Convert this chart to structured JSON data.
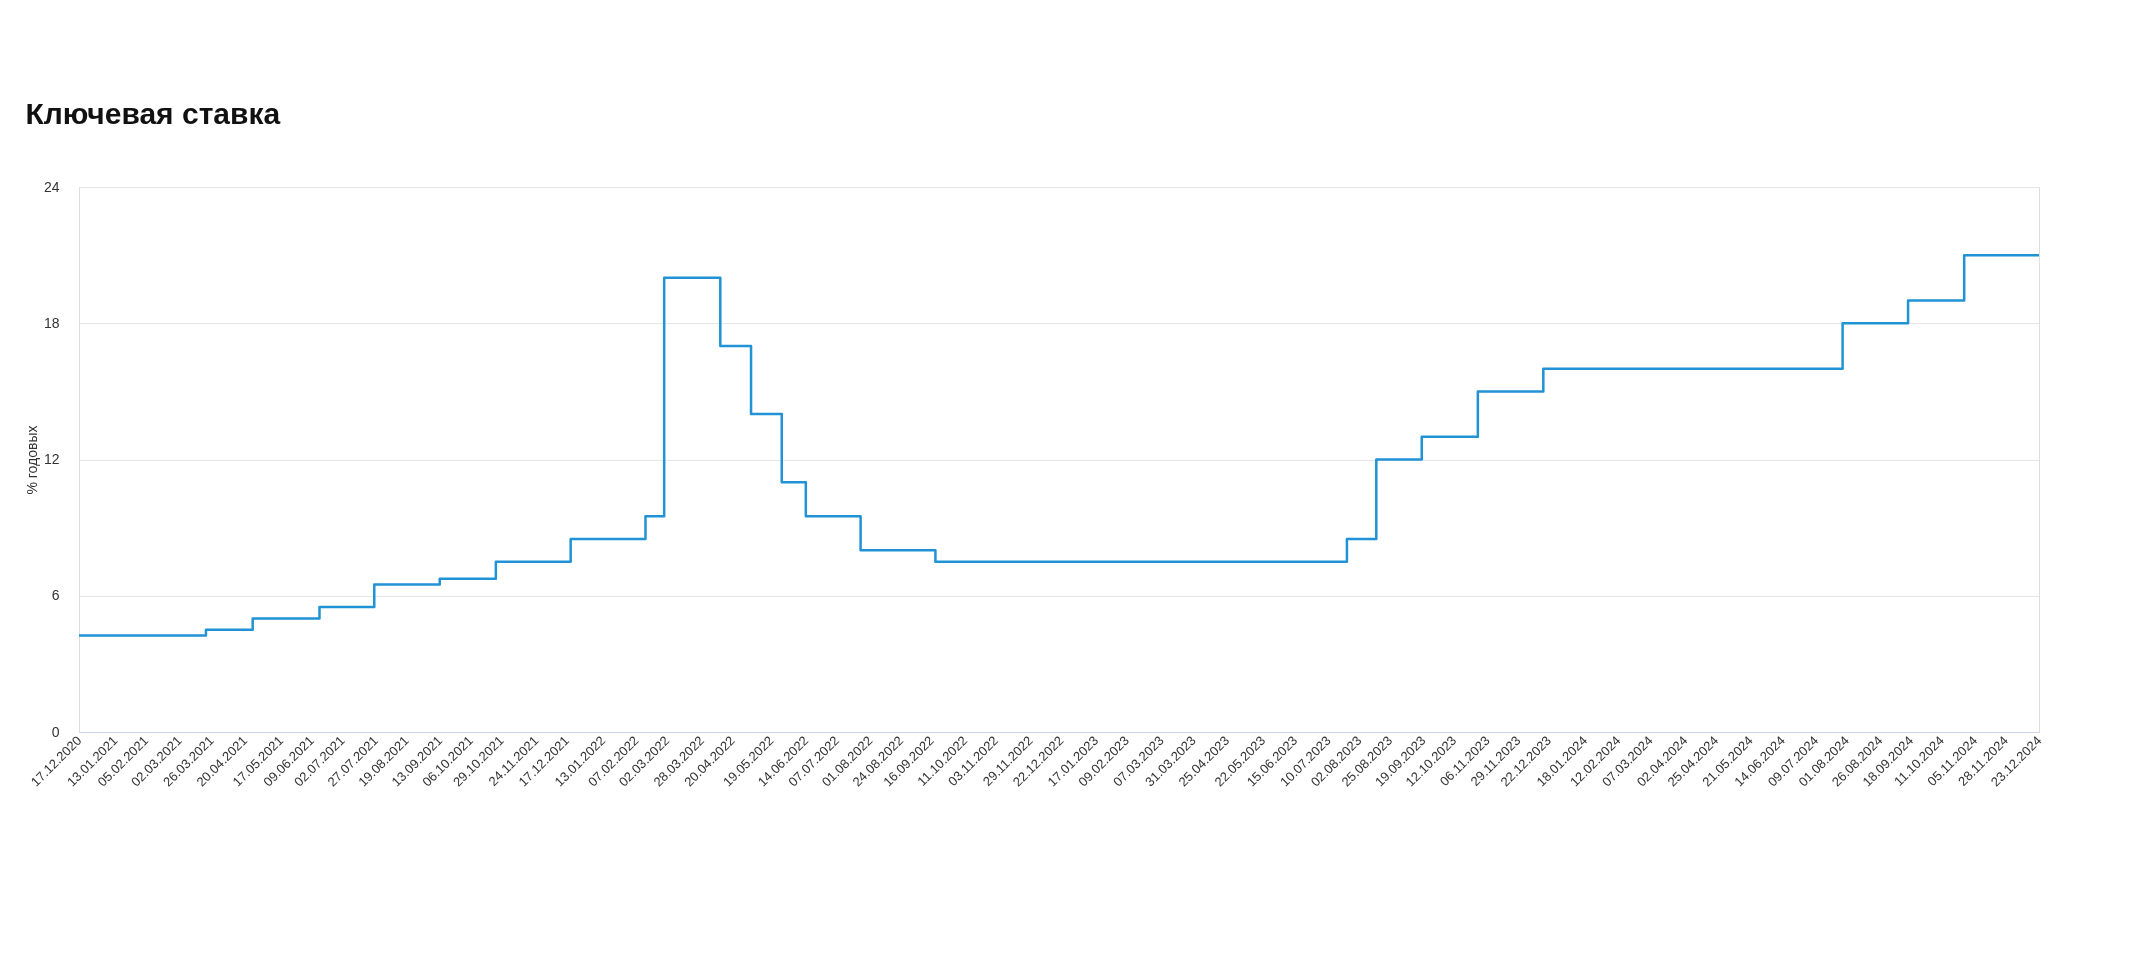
{
  "chart_data": {
    "type": "step",
    "title": "Ключевая ставка",
    "ylabel": "% годовых",
    "x": [
      "2020-12-17",
      "2021-03-22",
      "2021-04-26",
      "2021-06-15",
      "2021-07-26",
      "2021-09-13",
      "2021-10-25",
      "2021-12-20",
      "2022-02-14",
      "2022-02-28",
      "2022-04-11",
      "2022-05-04",
      "2022-05-27",
      "2022-06-14",
      "2022-07-25",
      "2022-09-19",
      "2023-07-24",
      "2023-08-15",
      "2023-09-18",
      "2023-10-30",
      "2023-12-18",
      "2024-07-29",
      "2024-09-16",
      "2024-10-28",
      "2024-12-23"
    ],
    "series": [
      {
        "color": "#1f93d3",
        "values": [
          4.25,
          4.5,
          5,
          5.5,
          6.5,
          6.75,
          7.5,
          8.5,
          9.5,
          20,
          17,
          14,
          11,
          9.5,
          8,
          7.5,
          8.5,
          12,
          13,
          15,
          16,
          18,
          19,
          21,
          21
        ]
      }
    ],
    "ylim": [
      0,
      24
    ],
    "yticks": [
      0,
      6,
      12,
      18,
      24
    ],
    "xlim": [
      "2020-12-17",
      "2024-12-23"
    ],
    "xticks": [
      {
        "value": "2020-12-17",
        "label": "17.12.2020"
      },
      {
        "value": "2021-01-13",
        "label": "13.01.2021"
      },
      {
        "value": "2021-02-05",
        "label": "05.02.2021"
      },
      {
        "value": "2021-03-02",
        "label": "02.03.2021"
      },
      {
        "value": "2021-03-26",
        "label": "26.03.2021"
      },
      {
        "value": "2021-04-20",
        "label": "20.04.2021"
      },
      {
        "value": "2021-05-17",
        "label": "17.05.2021"
      },
      {
        "value": "2021-06-09",
        "label": "09.06.2021"
      },
      {
        "value": "2021-07-02",
        "label": "02.07.2021"
      },
      {
        "value": "2021-07-27",
        "label": "27.07.2021"
      },
      {
        "value": "2021-08-19",
        "label": "19.08.2021"
      },
      {
        "value": "2021-09-13",
        "label": "13.09.2021"
      },
      {
        "value": "2021-10-06",
        "label": "06.10.2021"
      },
      {
        "value": "2021-10-29",
        "label": "29.10.2021"
      },
      {
        "value": "2021-11-24",
        "label": "24.11.2021"
      },
      {
        "value": "2021-12-17",
        "label": "17.12.2021"
      },
      {
        "value": "2022-01-13",
        "label": "13.01.2022"
      },
      {
        "value": "2022-02-07",
        "label": "07.02.2022"
      },
      {
        "value": "2022-03-02",
        "label": "02.03.2022"
      },
      {
        "value": "2022-03-28",
        "label": "28.03.2022"
      },
      {
        "value": "2022-04-20",
        "label": "20.04.2022"
      },
      {
        "value": "2022-05-19",
        "label": "19.05.2022"
      },
      {
        "value": "2022-06-14",
        "label": "14.06.2022"
      },
      {
        "value": "2022-07-07",
        "label": "07.07.2022"
      },
      {
        "value": "2022-08-01",
        "label": "01.08.2022"
      },
      {
        "value": "2022-08-24",
        "label": "24.08.2022"
      },
      {
        "value": "2022-09-16",
        "label": "16.09.2022"
      },
      {
        "value": "2022-10-11",
        "label": "11.10.2022"
      },
      {
        "value": "2022-11-03",
        "label": "03.11.2022"
      },
      {
        "value": "2022-11-29",
        "label": "29.11.2022"
      },
      {
        "value": "2022-12-22",
        "label": "22.12.2022"
      },
      {
        "value": "2023-01-17",
        "label": "17.01.2023"
      },
      {
        "value": "2023-02-09",
        "label": "09.02.2023"
      },
      {
        "value": "2023-03-07",
        "label": "07.03.2023"
      },
      {
        "value": "2023-03-31",
        "label": "31.03.2023"
      },
      {
        "value": "2023-04-25",
        "label": "25.04.2023"
      },
      {
        "value": "2023-05-22",
        "label": "22.05.2023"
      },
      {
        "value": "2023-06-15",
        "label": "15.06.2023"
      },
      {
        "value": "2023-07-10",
        "label": "10.07.2023"
      },
      {
        "value": "2023-08-02",
        "label": "02.08.2023"
      },
      {
        "value": "2023-08-25",
        "label": "25.08.2023"
      },
      {
        "value": "2023-09-19",
        "label": "19.09.2023"
      },
      {
        "value": "2023-10-12",
        "label": "12.10.2023"
      },
      {
        "value": "2023-11-06",
        "label": "06.11.2023"
      },
      {
        "value": "2023-11-29",
        "label": "29.11.2023"
      },
      {
        "value": "2023-12-22",
        "label": "22.12.2023"
      },
      {
        "value": "2024-01-18",
        "label": "18.01.2024"
      },
      {
        "value": "2024-02-12",
        "label": "12.02.2024"
      },
      {
        "value": "2024-03-07",
        "label": "07.03.2024"
      },
      {
        "value": "2024-04-02",
        "label": "02.04.2024"
      },
      {
        "value": "2024-04-25",
        "label": "25.04.2024"
      },
      {
        "value": "2024-05-21",
        "label": "21.05.2024"
      },
      {
        "value": "2024-06-14",
        "label": "14.06.2024"
      },
      {
        "value": "2024-07-09",
        "label": "09.07.2024"
      },
      {
        "value": "2024-08-01",
        "label": "01.08.2024"
      },
      {
        "value": "2024-08-26",
        "label": "26.08.2024"
      },
      {
        "value": "2024-09-18",
        "label": "18.09.2024"
      },
      {
        "value": "2024-10-11",
        "label": "11.10.2024"
      },
      {
        "value": "2024-11-05",
        "label": "05.11.2024"
      },
      {
        "value": "2024-11-28",
        "label": "28.11.2024"
      },
      {
        "value": "2024-12-23",
        "label": "23.12.2024"
      }
    ],
    "grid": "y",
    "marker": "none",
    "line_style": "solid"
  }
}
